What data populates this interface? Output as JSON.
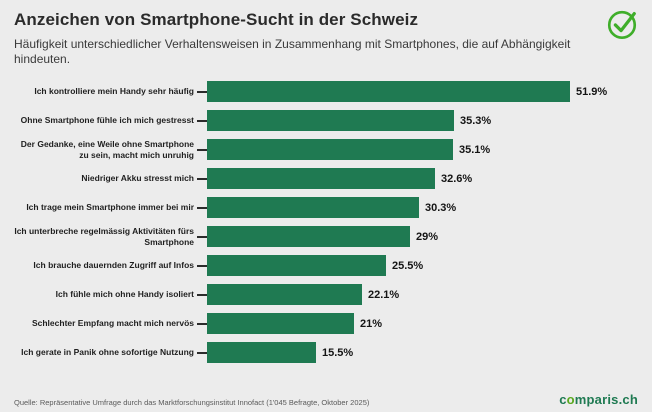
{
  "header": {
    "title": "Anzeichen von Smartphone-Sucht in der Schweiz",
    "subtitle": "Häufigkeit unterschiedlicher Verhaltensweisen in Zusammenhang mit Smartphones, die auf Abhängigkeit hindeuten."
  },
  "footer": {
    "source": "Quelle: Repräsentative Umfrage durch das Marktforschungsinstitut Innofact (1'045 Befragte, Oktober 2025)",
    "brand": {
      "c": "c",
      "o": "o",
      "rest": "mparis.ch"
    }
  },
  "icons": {
    "logo_check": "check-circle-icon"
  },
  "colors": {
    "background": "#ececec",
    "bar": "#1f7a52",
    "accent_green": "#3fae2a",
    "brand_green": "#1f7a52"
  },
  "chart_data": {
    "type": "bar",
    "orientation": "horizontal",
    "title": "Anzeichen von Smartphone-Sucht in der Schweiz",
    "subtitle": "Häufigkeit unterschiedlicher Verhaltensweisen in Zusammenhang mit Smartphones, die auf Abhängigkeit hindeuten.",
    "unit": "%",
    "xlim": [
      0,
      55
    ],
    "grid": false,
    "legend": false,
    "categories": [
      "Ich kontrolliere mein Handy sehr häufig",
      "Ohne Smartphone fühle ich mich gestresst",
      "Der Gedanke, eine Weile ohne Smartphone zu sein, macht mich unruhig",
      "Niedriger Akku stresst mich",
      "Ich trage mein Smartphone immer bei mir",
      "Ich unterbreche regelmässig Aktivitäten fürs Smartphone",
      "Ich brauche dauernden Zugriff auf Infos",
      "Ich fühle mich ohne Handy isoliert",
      "Schlechter Empfang macht mich nervös",
      "Ich gerate in Panik ohne sofortige Nutzung"
    ],
    "values": [
      51.9,
      35.3,
      35.1,
      32.6,
      30.3,
      29,
      25.5,
      22.1,
      21,
      15.5
    ],
    "value_labels": [
      "51.9%",
      "35.3%",
      "35.1%",
      "32.6%",
      "30.3%",
      "29%",
      "25.5%",
      "22.1%",
      "21%",
      "15.5%"
    ],
    "source": "Quelle: Repräsentative Umfrage durch das Marktforschungsinstitut Innofact (1'045 Befragte, Oktober 2025)"
  }
}
